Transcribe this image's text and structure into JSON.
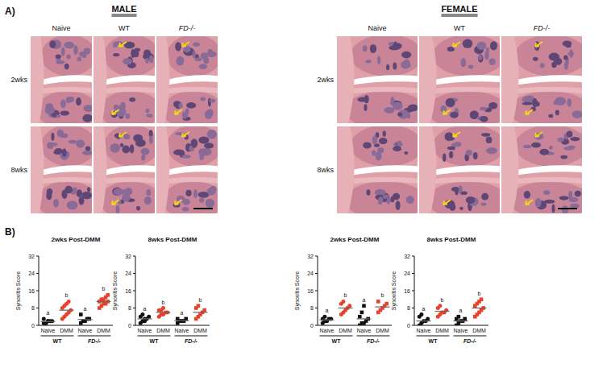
{
  "figure": {
    "panel_a": "A)",
    "panel_b": "B)",
    "sexes": [
      "MALE",
      "FEMALE"
    ],
    "columns": [
      "Naive",
      "WT",
      "FD-/-"
    ],
    "rows": [
      "2wks",
      "8wks"
    ]
  },
  "chart_data": [
    {
      "type": "dot",
      "title": "2wks Post-DMM",
      "y_label": "Synovitis Score",
      "categories": [
        "Naive",
        "DMM",
        "Naive",
        "DMM"
      ],
      "groups": [
        "WT",
        "FD-/-"
      ],
      "values": [
        [
          1,
          1,
          2,
          2,
          2,
          3,
          1,
          2
        ],
        [
          3,
          4,
          5,
          6,
          7,
          8,
          9,
          10,
          11
        ],
        [
          1,
          2,
          2,
          3,
          3,
          5
        ],
        [
          8,
          9,
          10,
          10,
          11,
          11,
          12,
          12,
          13,
          14
        ]
      ],
      "means": [
        1.75,
        7,
        2.7,
        11
      ],
      "letters": [
        "a",
        "b",
        "a",
        "b"
      ],
      "colors": [
        "#111111",
        "#e8412c",
        "#111111",
        "#e8412c"
      ],
      "markers": [
        "circle",
        "circle",
        "square",
        "square"
      ],
      "ylim": [
        0,
        32
      ],
      "yticks": [
        0,
        8,
        16,
        24,
        32
      ]
    },
    {
      "type": "dot",
      "title": "8wks Post-DMM",
      "y_label": "Synovitis Score",
      "categories": [
        "Naive",
        "DMM",
        "Naive",
        "DMM"
      ],
      "groups": [
        "WT",
        "FD-/-"
      ],
      "values": [
        [
          1,
          2,
          3,
          3,
          4,
          4,
          5,
          2
        ],
        [
          4,
          5,
          5,
          6,
          6,
          7,
          7,
          8
        ],
        [
          1,
          2,
          2,
          2,
          3,
          3
        ],
        [
          3,
          4,
          5,
          6,
          7,
          8,
          9
        ]
      ],
      "means": [
        3,
        6,
        2.2,
        6
      ],
      "letters": [
        "a",
        "b",
        "a",
        "b"
      ],
      "colors": [
        "#111111",
        "#e8412c",
        "#111111",
        "#e8412c"
      ],
      "markers": [
        "circle",
        "circle",
        "square",
        "square"
      ],
      "ylim": [
        0,
        32
      ],
      "yticks": [
        0,
        8,
        16,
        24,
        32
      ]
    },
    {
      "type": "dot",
      "title": "2wks Post-DMM",
      "y_label": "Synovitis Score",
      "categories": [
        "Naive",
        "DMM",
        "Naive",
        "DMM"
      ],
      "groups": [
        "WT",
        "FD-/-"
      ],
      "values": [
        [
          1,
          2,
          2,
          3,
          3,
          3,
          4
        ],
        [
          5,
          6,
          7,
          8,
          9,
          10,
          11
        ],
        [
          0,
          1,
          1,
          2,
          3,
          4,
          6,
          9
        ],
        [
          6,
          7,
          8,
          9,
          10,
          11
        ]
      ],
      "means": [
        2.5,
        8,
        3,
        8.5
      ],
      "letters": [
        "a",
        "b",
        "a",
        "b"
      ],
      "colors": [
        "#111111",
        "#e8412c",
        "#111111",
        "#e8412c"
      ],
      "markers": [
        "circle",
        "circle",
        "square",
        "square"
      ],
      "ylim": [
        0,
        32
      ],
      "yticks": [
        0,
        8,
        16,
        24,
        32
      ]
    },
    {
      "type": "dot",
      "title": "8wks Post-DMM",
      "y_label": "Synovitis Score",
      "categories": [
        "Naive",
        "DMM",
        "Naive",
        "DMM"
      ],
      "groups": [
        "WT",
        "FD-/-"
      ],
      "values": [
        [
          0,
          1,
          2,
          2,
          3,
          4,
          5
        ],
        [
          4,
          5,
          6,
          6,
          7,
          8,
          9
        ],
        [
          0,
          1,
          2,
          2,
          3,
          3,
          4
        ],
        [
          4,
          5,
          6,
          7,
          8,
          9,
          10,
          11,
          12
        ]
      ],
      "means": [
        2,
        6.5,
        2,
        8
      ],
      "letters": [
        "a",
        "b",
        "a",
        "b"
      ],
      "colors": [
        "#111111",
        "#e8412c",
        "#111111",
        "#e8412c"
      ],
      "markers": [
        "circle",
        "circle",
        "square",
        "square"
      ],
      "ylim": [
        0,
        32
      ],
      "yticks": [
        0,
        8,
        16,
        24,
        32
      ]
    }
  ]
}
